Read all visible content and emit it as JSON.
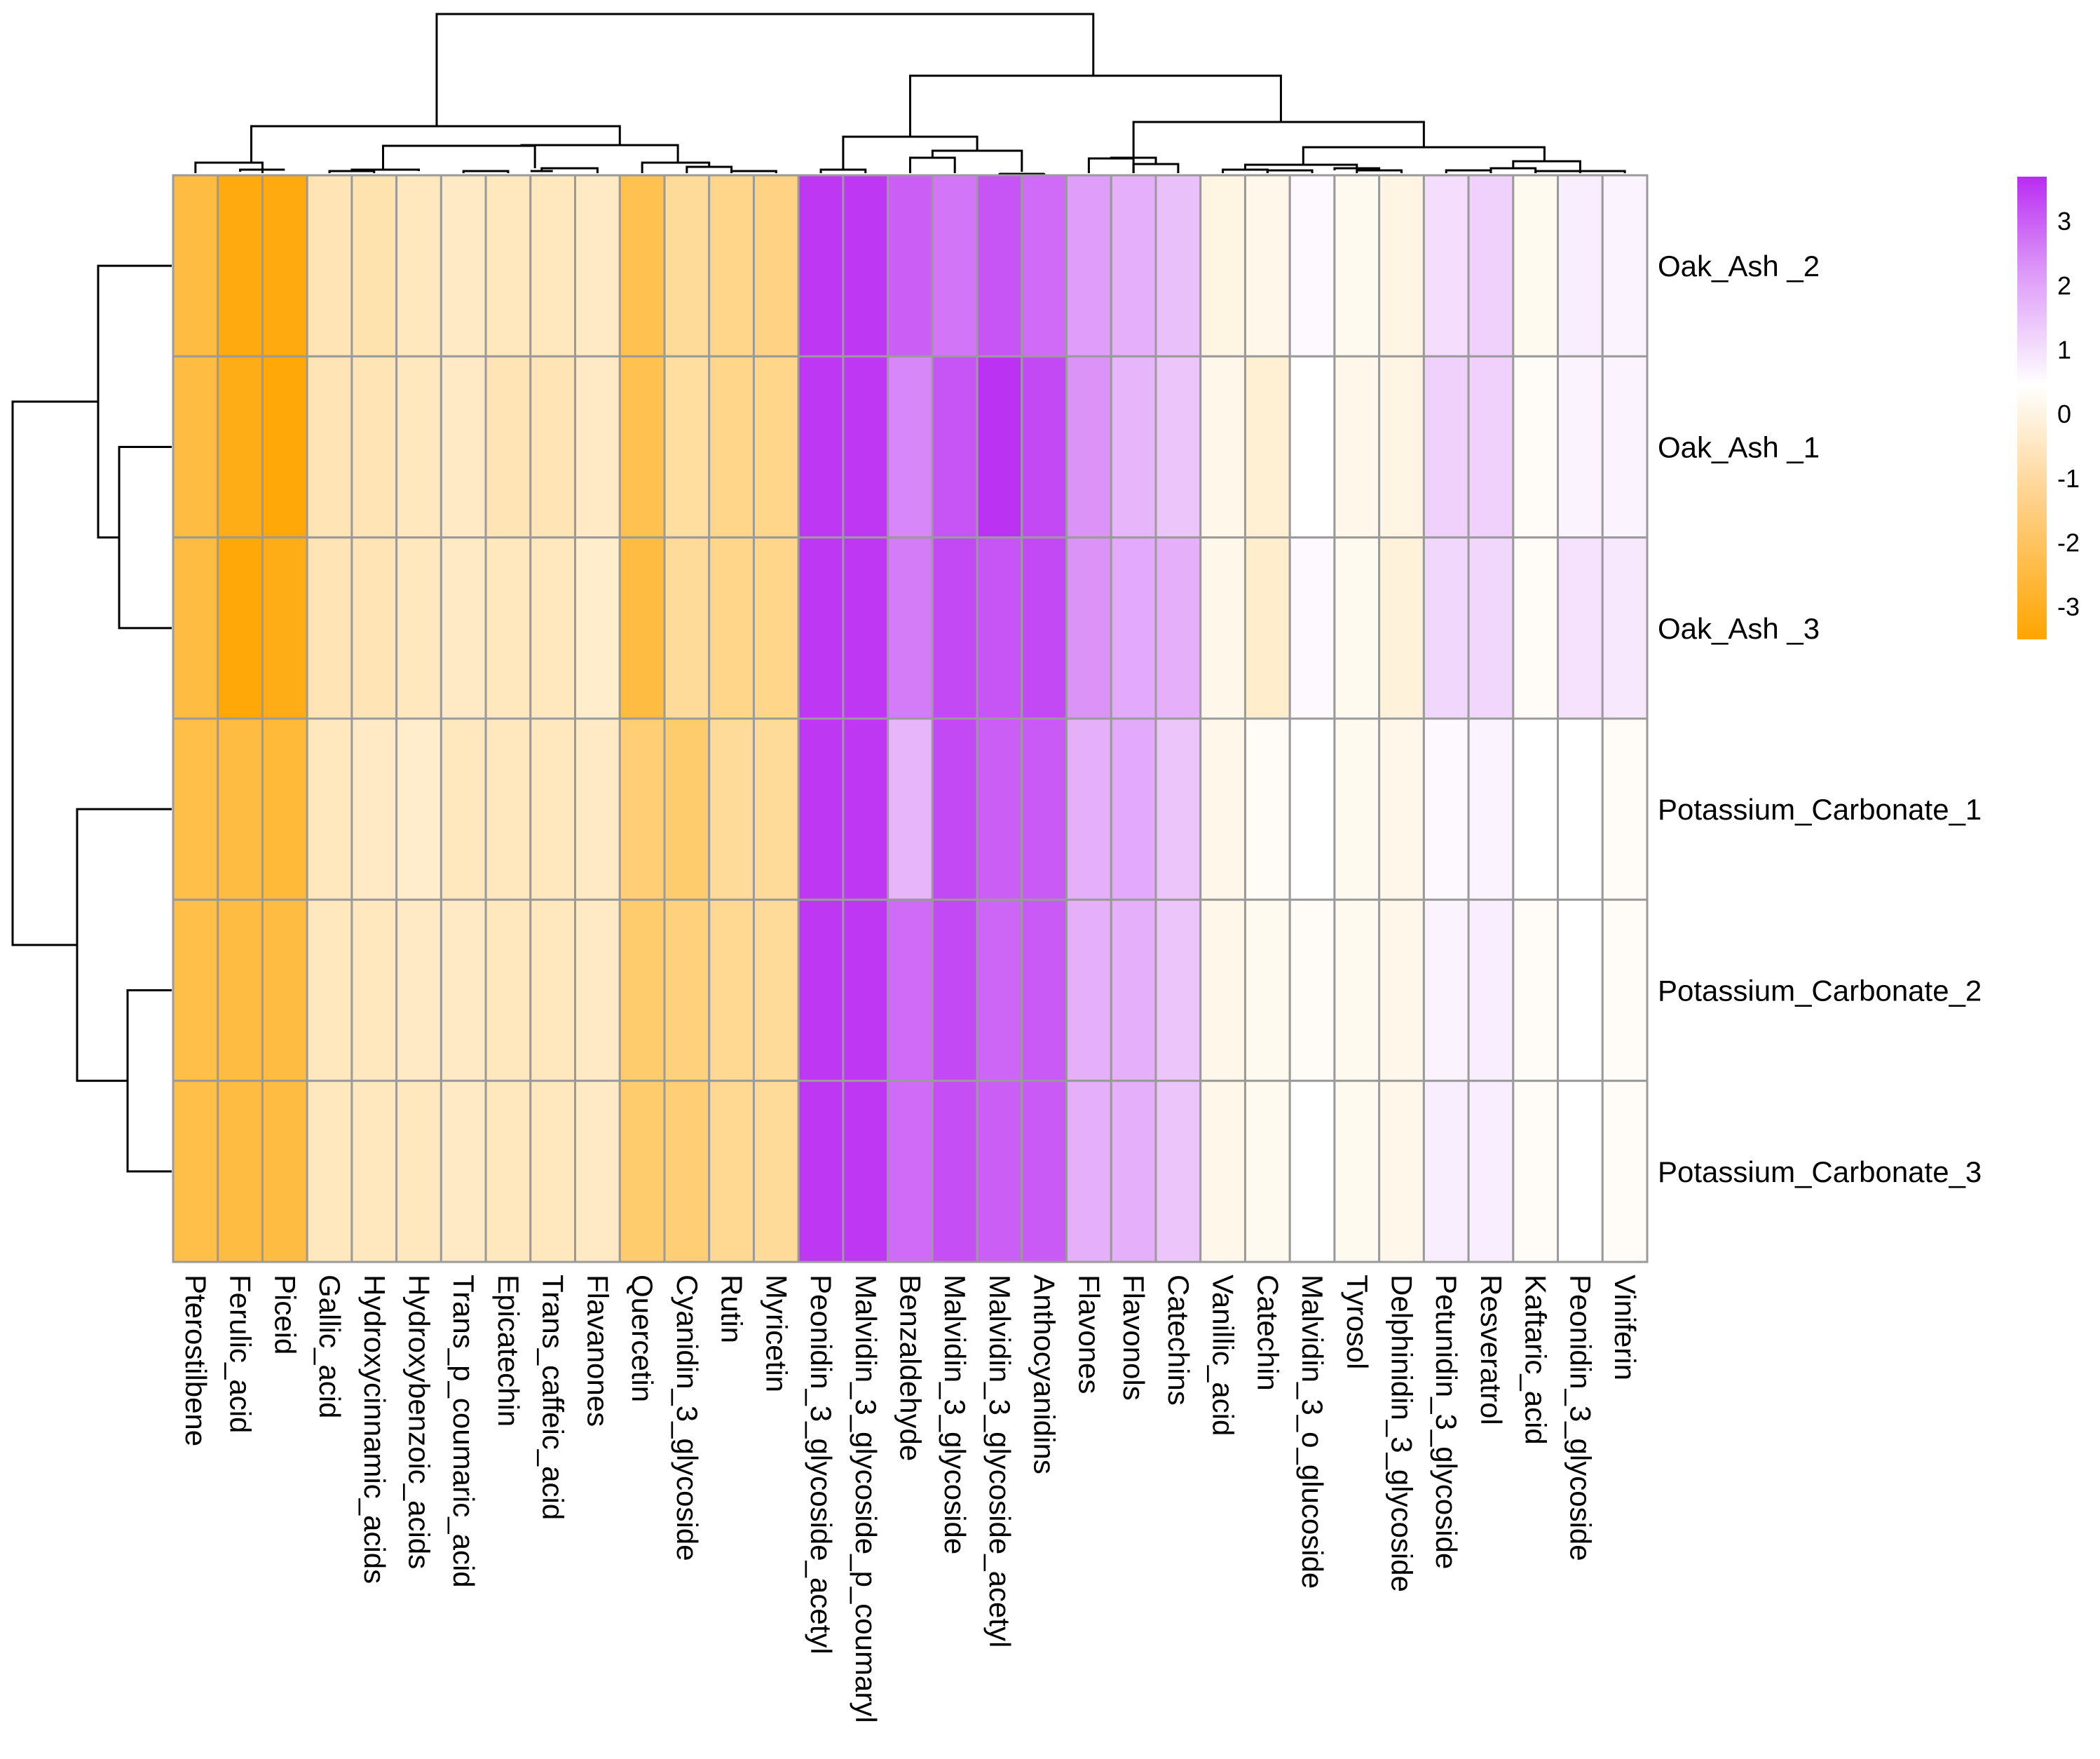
{
  "chart_data": {
    "type": "heatmap",
    "title": "",
    "xlabel": "",
    "ylabel": "",
    "columns": [
      "Pterostilbene",
      "Ferulic_acid",
      "Piceid",
      "Gallic_acid",
      "Hydroxycinnamic_acids",
      "Hydroxybenzoic_acids",
      "Trans_p_coumaric_acid",
      "Epicatechin",
      "Trans_caffeic_acid",
      "Flavanones",
      "Quercetin",
      "Cyanidin_3_glycoside",
      "Rutin",
      "Myricetin",
      "Peonidin_3_glycoside_acetyl",
      "Malvidin_3_glycoside_p_coumaryl",
      "Benzaldehyde",
      "Malvidin_3_glycoside",
      "Malvidin_3_glycoside_acetyl",
      "Anthocyanidins",
      "Flavones",
      "Flavonols",
      "Catechins",
      "Vanillic_acid",
      "Catechin",
      "Malvidin_3_o_glucoside",
      "Tyrosol",
      "Delphinidin_3_glycoside",
      "Petunidin_3_glycoside",
      "Resveratrol",
      "Kaftaric_acid",
      "Peonidin_3_glycoside",
      "Viniferin"
    ],
    "rows": [
      "Oak_Ash _2",
      "Oak_Ash _1",
      "Oak_Ash _3",
      "Potassium_Carbonate_1",
      "Potassium_Carbonate_2",
      "Potassium_Carbonate_3"
    ],
    "values": [
      [
        -2.6,
        -3.3,
        -3.3,
        -1.0,
        -1.1,
        -0.9,
        -0.8,
        -0.9,
        -0.9,
        -0.8,
        -2.4,
        -1.4,
        -1.6,
        -1.7,
        3.5,
        3.5,
        2.8,
        2.4,
        3.0,
        2.6,
        1.7,
        1.4,
        1.1,
        -0.4,
        -0.3,
        0.1,
        -0.2,
        -0.4,
        0.6,
        0.8,
        -0.2,
        0.3,
        0.2
      ],
      [
        -2.6,
        -3.2,
        -3.4,
        -1.0,
        -1.0,
        -0.9,
        -0.8,
        -1.0,
        -1.0,
        -0.8,
        -2.4,
        -1.3,
        -1.6,
        -1.6,
        3.5,
        3.5,
        2.1,
        3.0,
        3.6,
        3.2,
        1.9,
        1.3,
        1.0,
        -0.3,
        -0.6,
        0.0,
        -0.3,
        -0.4,
        0.8,
        0.8,
        -0.1,
        0.2,
        0.2
      ],
      [
        -2.6,
        -3.4,
        -3.2,
        -1.0,
        -1.0,
        -0.9,
        -0.8,
        -0.9,
        -0.9,
        -0.7,
        -2.6,
        -1.4,
        -1.6,
        -1.6,
        3.5,
        3.5,
        2.3,
        3.2,
        3.0,
        3.2,
        1.9,
        1.5,
        1.4,
        -0.3,
        -0.7,
        0.1,
        -0.2,
        -0.5,
        0.7,
        0.7,
        -0.1,
        0.5,
        0.4
      ],
      [
        -2.5,
        -2.6,
        -2.7,
        -0.9,
        -0.8,
        -0.7,
        -0.9,
        -0.9,
        -0.9,
        -0.8,
        -1.9,
        -2.0,
        -1.4,
        -1.4,
        3.5,
        3.5,
        1.3,
        3.2,
        2.8,
        2.9,
        1.4,
        1.5,
        1.0,
        -0.3,
        -0.1,
        0.0,
        -0.2,
        -0.3,
        0.1,
        0.2,
        0.0,
        0.0,
        -0.1
      ],
      [
        -2.5,
        -2.6,
        -2.6,
        -0.9,
        -0.9,
        -0.8,
        -0.8,
        -0.9,
        -0.9,
        -0.8,
        -2.0,
        -1.8,
        -1.5,
        -1.4,
        3.5,
        3.5,
        2.6,
        3.2,
        2.7,
        2.9,
        1.4,
        1.4,
        1.0,
        -0.3,
        -0.2,
        -0.1,
        -0.2,
        -0.3,
        0.2,
        0.3,
        -0.1,
        0.0,
        -0.1
      ],
      [
        -2.5,
        -2.6,
        -2.6,
        -0.9,
        -0.9,
        -0.9,
        -0.8,
        -0.9,
        -0.9,
        -0.8,
        -2.0,
        -1.9,
        -1.5,
        -1.4,
        3.5,
        3.5,
        2.6,
        3.1,
        2.8,
        2.9,
        1.4,
        1.4,
        1.0,
        -0.3,
        -0.2,
        0.0,
        -0.2,
        -0.3,
        0.3,
        0.3,
        -0.1,
        0.0,
        -0.1
      ]
    ],
    "colorscale": {
      "low": "#FFA500",
      "mid": "#FFFFFF",
      "high": "#BA2CF2",
      "min": -3.5,
      "max": 3.7
    },
    "legend": {
      "placement": "right",
      "ticks": [
        "3",
        "2",
        "1",
        "0",
        "-1",
        "-2",
        "-3"
      ]
    },
    "dendrograms": {
      "rows": true,
      "columns": true
    },
    "grid": true
  }
}
